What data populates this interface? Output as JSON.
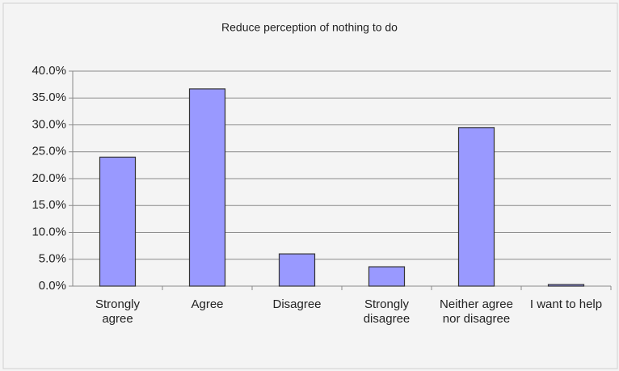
{
  "chart_data": {
    "type": "bar",
    "title": "Reduce perception of nothing to do",
    "categories": [
      "Strongly\nagree",
      "Agree",
      "Disagree",
      "Strongly\ndisagree",
      "Neither agree\nnor disagree",
      "I want to help"
    ],
    "values": [
      24.0,
      36.7,
      6.0,
      3.6,
      29.5,
      0.3
    ],
    "color": "#9999ff",
    "ylim": [
      0,
      40
    ],
    "yticks": [
      {
        "value": 0,
        "label": "0.0%"
      },
      {
        "value": 5,
        "label": "5.0%"
      },
      {
        "value": 10,
        "label": "10.0%"
      },
      {
        "value": 15,
        "label": "15.0%"
      },
      {
        "value": 20,
        "label": "20.0%"
      },
      {
        "value": 25,
        "label": "25.0%"
      },
      {
        "value": 30,
        "label": "30.0%"
      },
      {
        "value": 35,
        "label": "35.0%"
      },
      {
        "value": 40,
        "label": "40.0%"
      }
    ],
    "grid": true
  }
}
